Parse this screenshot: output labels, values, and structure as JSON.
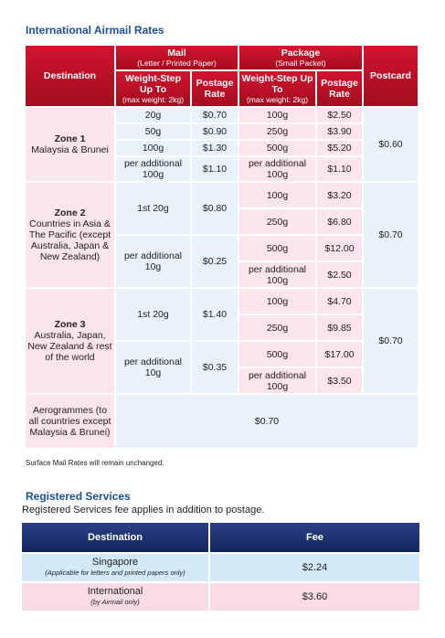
{
  "airmail": {
    "title": "International Airmail Rates",
    "headers": {
      "destination": "Destination",
      "postcard": "Postcard",
      "mail": {
        "title": "Mail",
        "subtitle": "(Letter / Printed Paper)",
        "weight_header": "Weight-Step Up To",
        "weight_note": "(max weight: 2kg)",
        "rate_header": "Postage Rate"
      },
      "package": {
        "title": "Package",
        "subtitle": "(Small Packet)",
        "weight_header": "Weight-Step Up To",
        "weight_note": "(max weight: 2kg)",
        "rate_header": "Postage Rate"
      }
    },
    "zones": [
      {
        "name": "Zone 1",
        "description": "Malaysia & Brunei",
        "mail": [
          [
            "20g",
            "$0.70"
          ],
          [
            "50g",
            "$0.90"
          ],
          [
            "100g",
            "$1.30"
          ],
          [
            "per additional 100g",
            "$1.10"
          ]
        ],
        "package": [
          [
            "100g",
            "$2.50"
          ],
          [
            "250g",
            "$3.90"
          ],
          [
            "500g",
            "$5.20"
          ],
          [
            "per additional 100g",
            "$1.10"
          ]
        ],
        "postcard": "$0.60"
      },
      {
        "name": "Zone 2",
        "description": "Countries in Asia & The Pacific (except Australia, Japan & New Zealand)",
        "mail": [
          [
            "1st 20g",
            "$0.80"
          ],
          [
            "per additional 10g",
            "$0.25"
          ]
        ],
        "package": [
          [
            "100g",
            "$3.20"
          ],
          [
            "250g",
            "$6.80"
          ],
          [
            "500g",
            "$12.00"
          ],
          [
            "per additional 100g",
            "$2.50"
          ]
        ],
        "postcard": "$0.70"
      },
      {
        "name": "Zone 3",
        "description": "Australia, Japan, New Zealand & rest of the world",
        "mail": [
          [
            "1st 20g",
            "$1.40"
          ],
          [
            "per additional 10g",
            "$0.35"
          ]
        ],
        "package": [
          [
            "100g",
            "$4.70"
          ],
          [
            "250g",
            "$9.85"
          ],
          [
            "500g",
            "$17.00"
          ],
          [
            "per additional 100g",
            "$3.50"
          ]
        ],
        "postcard": "$0.70"
      }
    ],
    "aerogrammes": {
      "label": "Aerogrammes (to all countries except Malaysia & Brunei)",
      "rate": "$0.70"
    },
    "note": "Surface Mail Rates will remain unchanged."
  },
  "registered": {
    "title": "Registered Services",
    "intro": "Registered Services fee applies in addition to postage.",
    "headers": [
      "Destination",
      "Fee"
    ],
    "rows": [
      {
        "destination": "Singapore",
        "note": "(Applicable for letters and printed papers only)",
        "fee": "$2.24"
      },
      {
        "destination": "International",
        "note": "(by Airmail only)",
        "fee": "$3.60"
      }
    ]
  }
}
